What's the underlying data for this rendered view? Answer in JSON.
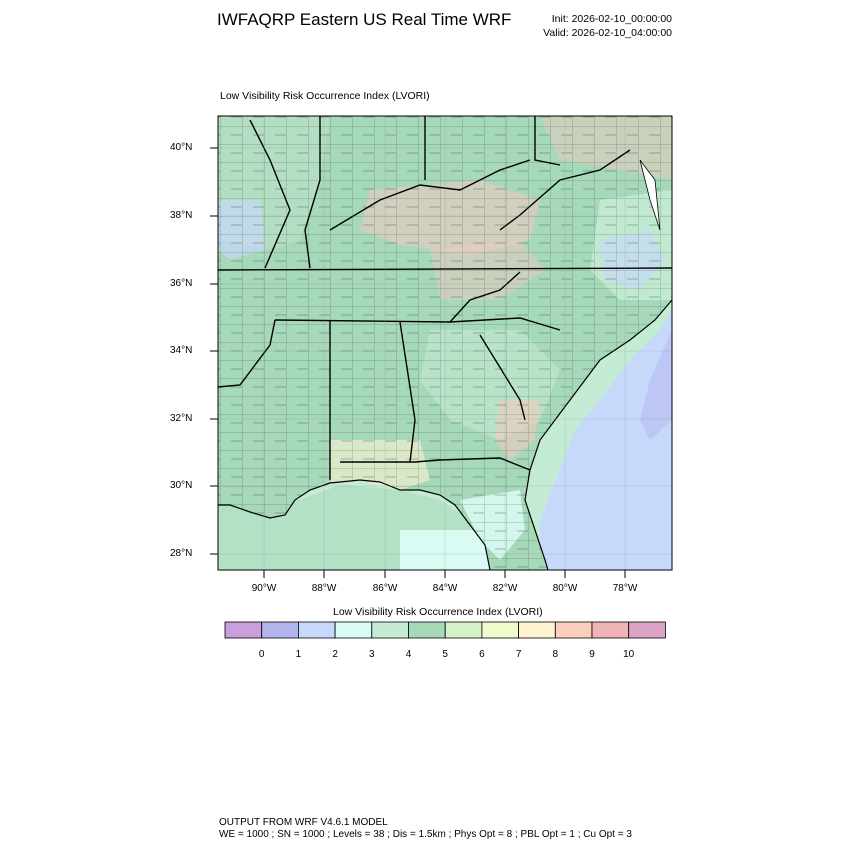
{
  "header": {
    "title": "IWFAQRP Eastern US Real Time WRF",
    "init": "Init: 2026-02-10_00:00:00",
    "valid": "Valid: 2026-02-10_04:00:00"
  },
  "panel": {
    "title": "Low Visibility Risk Occurrence Index   (LVORI)"
  },
  "map": {
    "lat_labels": [
      "40°N",
      "38°N",
      "36°N",
      "34°N",
      "32°N",
      "30°N",
      "28°N"
    ],
    "lon_labels": [
      "90°W",
      "88°W",
      "86°W",
      "84°W",
      "82°W",
      "80°W",
      "78°W"
    ]
  },
  "colorbar": {
    "title": "Low Visibility Risk Occurrence Index  (LVORI)",
    "labels": [
      "0",
      "1",
      "2",
      "3",
      "4",
      "5",
      "6",
      "7",
      "8",
      "9",
      "10"
    ],
    "colors": [
      "#c9a0dc",
      "#b3b3ee",
      "#c6d9fb",
      "#d9fbf3",
      "#c4ebd4",
      "#a6d8ba",
      "#d6f0c8",
      "#effacd",
      "#fff3d2",
      "#fbcfbb",
      "#f0b3b6",
      "#dca3c8"
    ]
  },
  "footer": {
    "line1": "OUTPUT FROM WRF V4.6.1 MODEL",
    "line2": "WE = 1000 ; SN = 1000 ; Levels = 38 ; Dis = 1.5km ; Phys Opt = 8 ; PBL Opt = 1 ; Cu Opt = 3"
  }
}
